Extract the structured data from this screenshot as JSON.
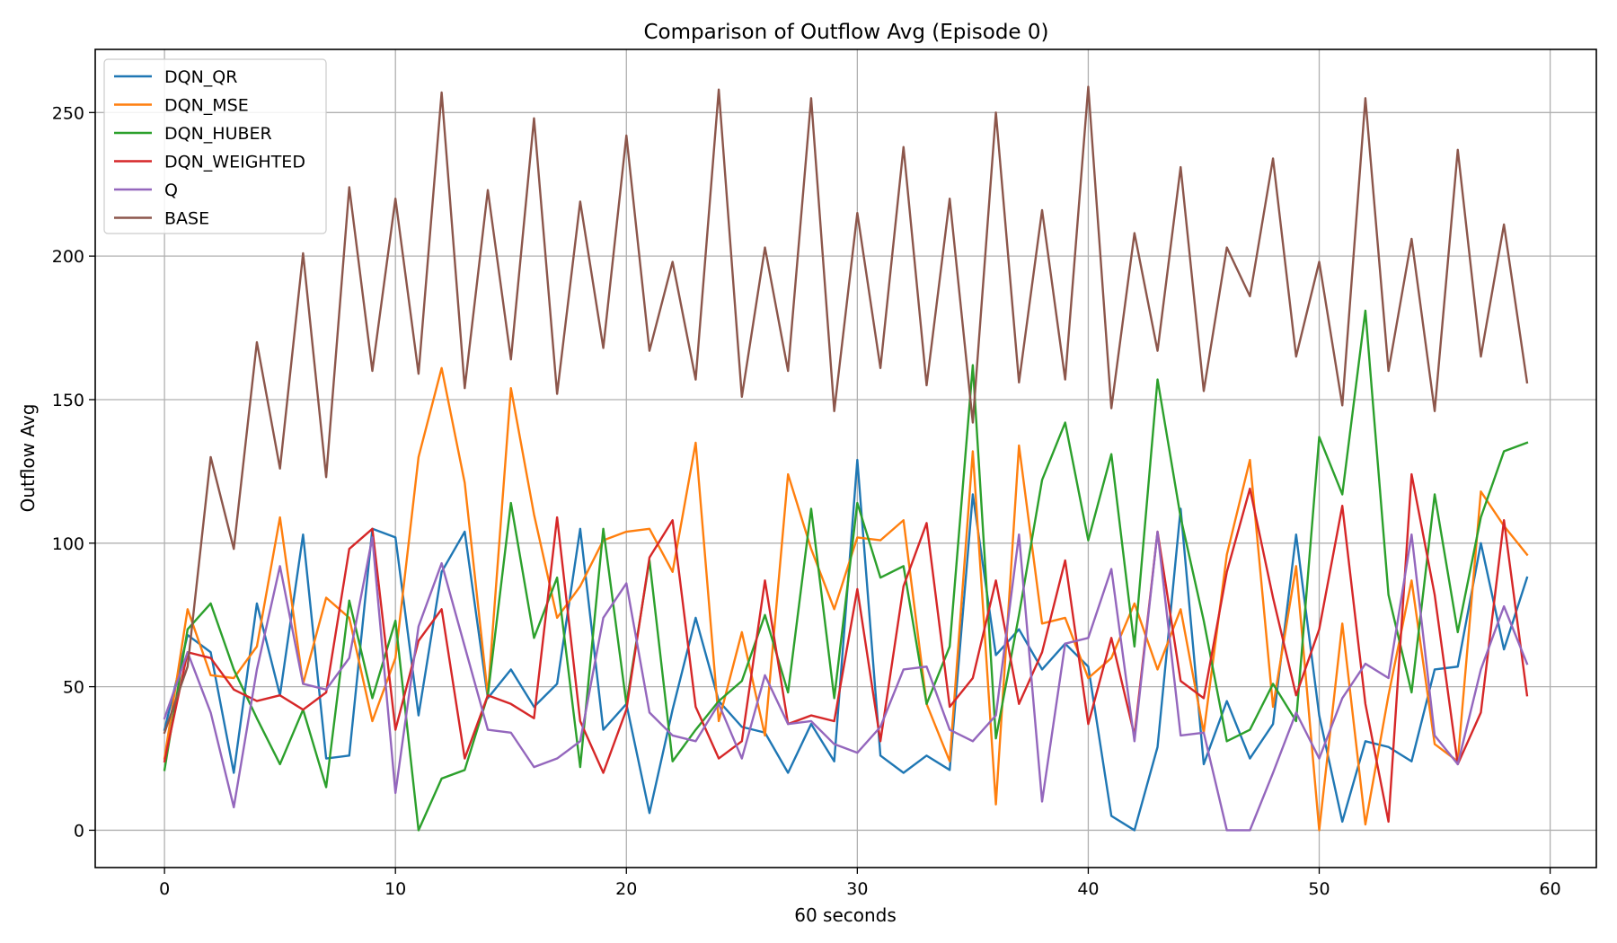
{
  "chart_data": {
    "type": "line",
    "title": "Comparison of Outflow Avg (Episode 0)",
    "xlabel": "60 seconds",
    "ylabel": "Outflow Avg",
    "xlim": [
      -3,
      62
    ],
    "ylim": [
      -13,
      272
    ],
    "xticks": [
      0,
      10,
      20,
      30,
      40,
      50,
      60
    ],
    "yticks": [
      0,
      50,
      100,
      150,
      200,
      250
    ],
    "grid": true,
    "legend_position": "top-left",
    "x": [
      0,
      1,
      2,
      3,
      4,
      5,
      6,
      7,
      8,
      9,
      10,
      11,
      12,
      13,
      14,
      15,
      16,
      17,
      18,
      19,
      20,
      21,
      22,
      23,
      24,
      25,
      26,
      27,
      28,
      29,
      30,
      31,
      32,
      33,
      34,
      35,
      36,
      37,
      38,
      39,
      40,
      41,
      42,
      43,
      44,
      45,
      46,
      47,
      48,
      49,
      50,
      51,
      52,
      53,
      54,
      55,
      56,
      57,
      58,
      59
    ],
    "series": [
      {
        "name": "DQN_QR",
        "color": "#1f77b4",
        "values": [
          35,
          68,
          62,
          20,
          79,
          47,
          103,
          25,
          26,
          105,
          102,
          40,
          90,
          104,
          46,
          56,
          43,
          51,
          105,
          35,
          44,
          6,
          42,
          74,
          45,
          36,
          34,
          20,
          37,
          24,
          129,
          26,
          20,
          26,
          21,
          117,
          61,
          70,
          56,
          65,
          57,
          5,
          0,
          29,
          112,
          23,
          45,
          25,
          37,
          103,
          40,
          3,
          31,
          29,
          24,
          56,
          57,
          100,
          63,
          88
        ]
      },
      {
        "name": "DQN_MSE",
        "color": "#ff7f0e",
        "values": [
          25,
          77,
          54,
          53,
          64,
          109,
          51,
          81,
          74,
          38,
          60,
          130,
          161,
          121,
          47,
          154,
          110,
          74,
          85,
          101,
          104,
          105,
          90,
          135,
          38,
          69,
          33,
          124,
          98,
          77,
          102,
          101,
          108,
          44,
          24,
          132,
          9,
          134,
          72,
          74,
          53,
          60,
          79,
          56,
          77,
          34,
          96,
          129,
          43,
          92,
          0,
          72,
          2,
          47,
          87,
          30,
          24,
          118,
          106,
          96
        ]
      },
      {
        "name": "DQN_HUBER",
        "color": "#2ca02c",
        "values": [
          21,
          70,
          79,
          56,
          39,
          23,
          42,
          15,
          80,
          46,
          73,
          0,
          18,
          21,
          47,
          114,
          67,
          88,
          22,
          105,
          44,
          94,
          24,
          35,
          45,
          52,
          75,
          48,
          112,
          46,
          114,
          88,
          92,
          44,
          64,
          162,
          32,
          75,
          122,
          142,
          101,
          131,
          64,
          157,
          109,
          73,
          31,
          35,
          51,
          38,
          137,
          117,
          181,
          82,
          48,
          117,
          69,
          109,
          132,
          135
        ]
      },
      {
        "name": "DQN_WEIGHTED",
        "color": "#d62728",
        "values": [
          24,
          62,
          60,
          49,
          45,
          47,
          42,
          48,
          98,
          105,
          35,
          66,
          77,
          25,
          47,
          44,
          39,
          109,
          38,
          20,
          42,
          95,
          108,
          43,
          25,
          31,
          87,
          37,
          40,
          38,
          84,
          31,
          85,
          107,
          43,
          53,
          87,
          44,
          62,
          94,
          37,
          67,
          33,
          104,
          52,
          46,
          90,
          119,
          81,
          47,
          70,
          113,
          44,
          3,
          124,
          82,
          23,
          41,
          108,
          47
        ]
      },
      {
        "name": "Q",
        "color": "#9467bd",
        "values": [
          39,
          62,
          41,
          8,
          56,
          92,
          51,
          49,
          60,
          102,
          13,
          71,
          93,
          64,
          35,
          34,
          22,
          25,
          31,
          74,
          86,
          41,
          33,
          31,
          44,
          25,
          54,
          37,
          38,
          30,
          27,
          36,
          56,
          57,
          35,
          31,
          40,
          103,
          10,
          65,
          67,
          91,
          31,
          104,
          33,
          34,
          0,
          0,
          20,
          41,
          25,
          46,
          58,
          53,
          103,
          33,
          23,
          56,
          78,
          58
        ]
      },
      {
        "name": "BASE",
        "color": "#8c564b",
        "values": [
          34,
          57,
          130,
          98,
          170,
          126,
          201,
          123,
          224,
          160,
          220,
          159,
          257,
          154,
          223,
          164,
          248,
          152,
          219,
          168,
          242,
          167,
          198,
          157,
          258,
          151,
          203,
          160,
          255,
          146,
          215,
          161,
          238,
          155,
          220,
          142,
          250,
          156,
          216,
          157,
          259,
          147,
          208,
          167,
          231,
          153,
          203,
          186,
          234,
          165,
          198,
          148,
          255,
          160,
          206,
          146,
          237,
          165,
          211,
          156
        ]
      }
    ]
  }
}
